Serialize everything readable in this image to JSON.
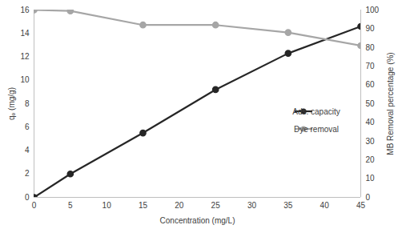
{
  "chart_data": {
    "type": "line",
    "x_label": "Concentration (mg/L)",
    "y_label": "qₑ (mg/g)",
    "y2_label": "MB Removal percentage (%)",
    "x": [
      0,
      5,
      15,
      25,
      35,
      45
    ],
    "series": [
      {
        "name": "Ads. capacity",
        "color": "#262626",
        "marker": "circle",
        "values": [
          0,
          2.0,
          5.5,
          9.2,
          12.3,
          14.6
        ]
      },
      {
        "name": "Dye removal",
        "color": "#a6a6a6",
        "marker": "circle",
        "axis": "y2",
        "values": [
          100,
          99.5,
          92,
          92,
          88,
          81
        ]
      }
    ],
    "xlim": [
      0,
      45
    ],
    "xticks": [
      0,
      5,
      10,
      15,
      20,
      25,
      30,
      35,
      40,
      45
    ],
    "ylim": [
      0,
      16
    ],
    "yticks": [
      0,
      2,
      4,
      6,
      8,
      10,
      12,
      14,
      16
    ],
    "y2lim": [
      0,
      100
    ],
    "y2ticks": [
      0,
      10,
      20,
      30,
      40,
      50,
      60,
      70,
      80,
      90,
      100
    ],
    "grid": false,
    "legend": "right"
  }
}
